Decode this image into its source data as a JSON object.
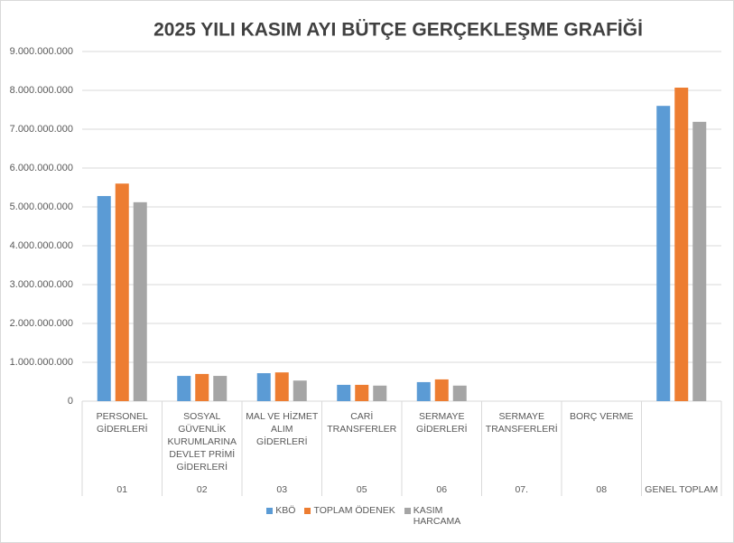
{
  "chart_data": {
    "type": "bar",
    "title": "2025 YILI KASIM AYI BÜTÇE GERÇEKLEŞME GRAFİĞİ",
    "categories": [
      "PERSONEL GİDERLERİ",
      "SOSYAL GÜVENLİK KURUMLARINA DEVLET PRİMİ GİDERLERİ",
      "MAL VE HİZMET ALIM GİDERLERİ",
      "CARİ TRANSFERLER",
      "SERMAYE GİDERLERİ",
      "SERMAYE TRANSFERLERİ",
      "BORÇ VERME",
      null
    ],
    "codes": [
      "01",
      "02",
      "03",
      "05",
      "06",
      "07.",
      "08",
      "GENEL TOPLAM"
    ],
    "series": [
      {
        "name": "KBÖ",
        "color": "#5b9bd5",
        "values": [
          5280000000,
          650000000,
          720000000,
          420000000,
          490000000,
          0,
          0,
          7600000000
        ]
      },
      {
        "name": "TOPLAM ÖDENEK",
        "color": "#ed7d31",
        "values": [
          5600000000,
          700000000,
          740000000,
          420000000,
          560000000,
          0,
          0,
          8070000000
        ]
      },
      {
        "name": "KASIM HARCAMA",
        "color": "#a5a5a5",
        "values": [
          5120000000,
          650000000,
          530000000,
          400000000,
          400000000,
          0,
          0,
          7190000000
        ]
      }
    ],
    "ylim": [
      0,
      9000000000
    ],
    "yticks": [
      0,
      {
        "value": 1000000000,
        "label": "1.000.000.000"
      },
      {
        "value": 2000000000,
        "label": "2.000.000.000"
      },
      {
        "value": 3000000000,
        "label": "3.000.000.000"
      },
      {
        "value": 4000000000,
        "label": "4.000.000.000"
      },
      {
        "value": 5000000000,
        "label": "5.000.000.000"
      },
      {
        "value": 6000000000,
        "label": "6.000.000.000"
      },
      {
        "value": 7000000000,
        "label": "7.000.000.000"
      },
      {
        "value": 8000000000,
        "label": "8.000.000.000"
      },
      {
        "value": 9000000000,
        "label": "9.000.000.000"
      }
    ],
    "grid": true,
    "legend": "bottom"
  }
}
